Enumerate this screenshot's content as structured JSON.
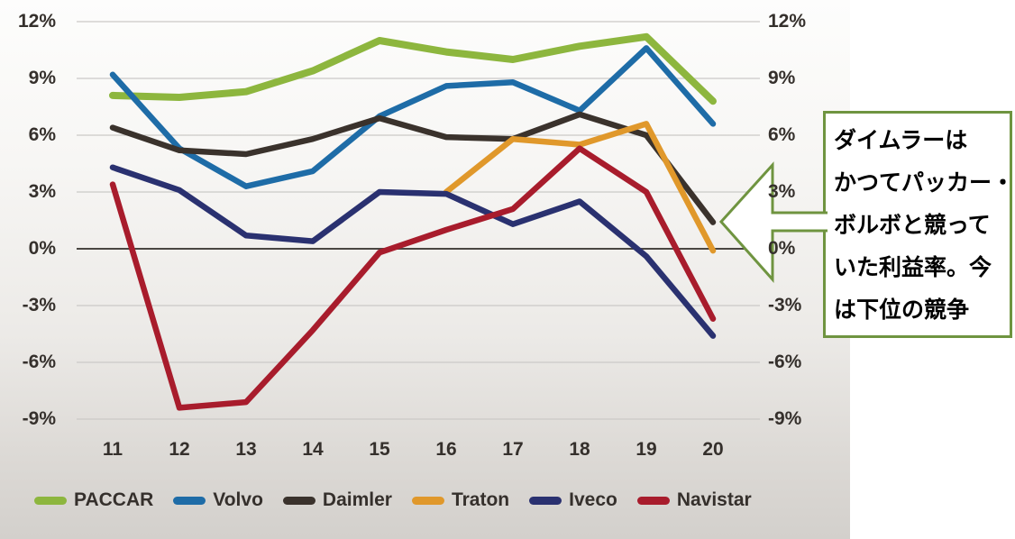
{
  "chart_data": {
    "type": "line",
    "title": "",
    "xlabel": "",
    "ylabel": "",
    "x_labels": [
      "11",
      "12",
      "13",
      "14",
      "15",
      "16",
      "17",
      "18",
      "19",
      "20"
    ],
    "y_ticks": [
      "12%",
      "9%",
      "6%",
      "3%",
      "0%",
      "-3%",
      "-6%",
      "-9%"
    ],
    "y_tick_values": [
      12,
      9,
      6,
      3,
      0,
      -3,
      -6,
      -9
    ],
    "ylim": [
      -9,
      12
    ],
    "dual_axis": true,
    "grid": true,
    "legend_position": "bottom",
    "series": [
      {
        "name": "PACCAR",
        "color": "#8DB63E",
        "values": [
          8.1,
          8.0,
          8.3,
          9.4,
          11.0,
          10.4,
          10.0,
          10.7,
          11.2,
          7.8
        ]
      },
      {
        "name": "Volvo",
        "color": "#1E6CA7",
        "values": [
          9.2,
          5.3,
          3.3,
          4.1,
          7.0,
          8.6,
          8.8,
          7.3,
          10.6,
          6.6
        ]
      },
      {
        "name": "Daimler",
        "color": "#3A322C",
        "values": [
          6.4,
          5.2,
          5.0,
          5.8,
          6.9,
          5.9,
          5.8,
          7.1,
          6.0,
          1.4
        ]
      },
      {
        "name": "Traton",
        "color": "#E0982B",
        "values": [
          null,
          null,
          null,
          null,
          null,
          3.0,
          5.8,
          5.5,
          6.6,
          -0.1
        ]
      },
      {
        "name": "Iveco",
        "color": "#2A3170",
        "values": [
          4.3,
          3.1,
          0.7,
          0.4,
          3.0,
          2.9,
          1.3,
          2.5,
          -0.4,
          -4.6
        ]
      },
      {
        "name": "Navistar",
        "color": "#A81C2C",
        "values": [
          3.4,
          -8.4,
          -8.1,
          -4.3,
          -0.2,
          1.0,
          2.1,
          5.3,
          3.0,
          -3.7
        ]
      }
    ]
  },
  "annotation": {
    "lines": [
      "ダイムラーは",
      "かつてパッカー・",
      "ボルボと競って",
      "いた利益率。今",
      "は下位の競争"
    ],
    "border_color": "#6F9440",
    "fill_color": "#FFFFFF"
  },
  "colors": {
    "axis_text": "#35302C",
    "gridline": "#CBC9C7",
    "zero_line": "#4A4642",
    "panel_top": "#FDFDFC",
    "panel_bottom": "#D3D0CC"
  }
}
